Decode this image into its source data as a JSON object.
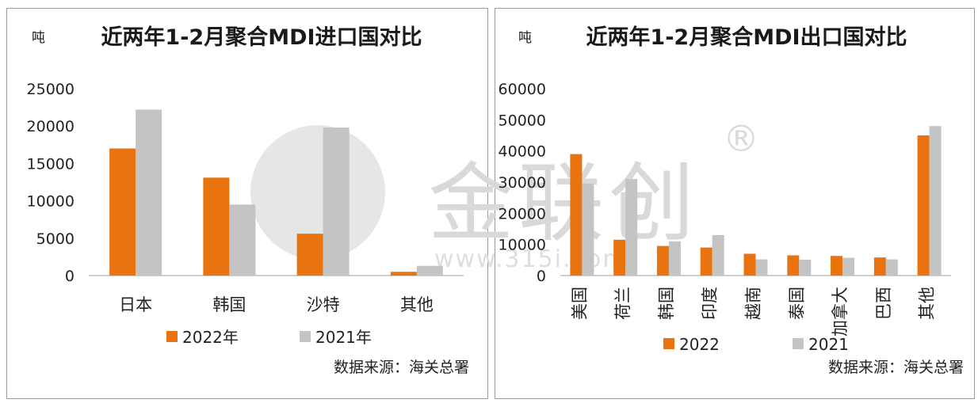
{
  "watermark": {
    "brand": "金联创",
    "url": "www.315i.com",
    "reg_mark": "®"
  },
  "colors": {
    "series_2022": "#e8730f",
    "series_2021": "#c4c4c4",
    "axis": "#bfbfbf"
  },
  "chart_data": [
    {
      "type": "bar",
      "title": "近两年1-2月聚合MDI进口国对比",
      "unit": "吨",
      "ylim": [
        0,
        25000
      ],
      "yticks": [
        "0",
        "5000",
        "10000",
        "15000",
        "20000",
        "25000"
      ],
      "categories": [
        "日本",
        "韩国",
        "沙特",
        "其他"
      ],
      "series": [
        {
          "name": "2022年",
          "color": "#e8730f",
          "values": [
            17000,
            13100,
            5600,
            500
          ]
        },
        {
          "name": "2021年",
          "color": "#c4c4c4",
          "values": [
            22200,
            9500,
            19800,
            1300
          ]
        }
      ],
      "legend_position": "bottom",
      "source": "数据来源：海关总署"
    },
    {
      "type": "bar",
      "title": "近两年1-2月聚合MDI出口国对比",
      "unit": "吨",
      "ylim": [
        0,
        60000
      ],
      "yticks": [
        "0",
        "10000",
        "20000",
        "30000",
        "40000",
        "50000",
        "60000"
      ],
      "categories": [
        "美国",
        "荷兰",
        "韩国",
        "印度",
        "越南",
        "泰国",
        "加拿大",
        "巴西",
        "其他"
      ],
      "series": [
        {
          "name": "2022",
          "color": "#e8730f",
          "values": [
            39000,
            11500,
            9500,
            9000,
            7000,
            6500,
            6300,
            5800,
            45000
          ]
        },
        {
          "name": "2021",
          "color": "#c4c4c4",
          "values": [
            29500,
            31000,
            11000,
            13000,
            5200,
            5100,
            5700,
            5200,
            48000
          ]
        }
      ],
      "legend_position": "bottom",
      "source": "数据来源：海关总署"
    }
  ]
}
